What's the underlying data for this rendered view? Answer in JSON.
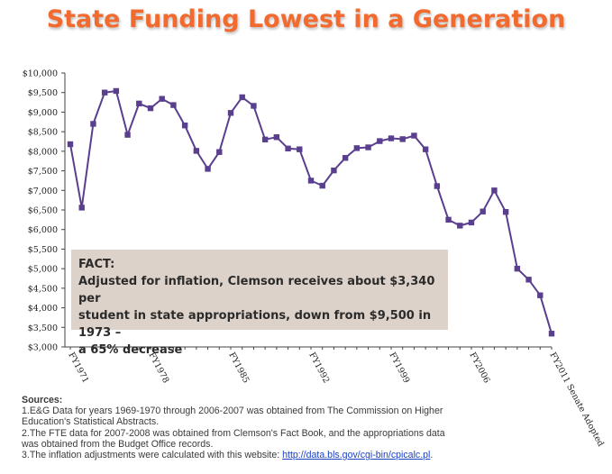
{
  "chart_data": {
    "type": "line",
    "title": "State Funding Lowest in a Generation",
    "xlabel": "",
    "ylabel": "",
    "ylim": [
      3000,
      10000
    ],
    "yticks": [
      "$3,000",
      "$3,500",
      "$4,000",
      "$4,500",
      "$5,000",
      "$5,500",
      "$6,000",
      "$6,500",
      "$7,000",
      "$7,500",
      "$8,000",
      "$8,500",
      "$9,000",
      "$9,500",
      "$10,000"
    ],
    "ytick_values": [
      3000,
      3500,
      4000,
      4500,
      5000,
      5500,
      6000,
      6500,
      7000,
      7500,
      8000,
      8500,
      9000,
      9500,
      10000
    ],
    "xtick_labels": [
      {
        "label": "FY1971",
        "index": 0
      },
      {
        "label": "FY1978",
        "index": 7
      },
      {
        "label": "FY1985",
        "index": 14
      },
      {
        "label": "FY1992",
        "index": 21
      },
      {
        "label": "FY1999",
        "index": 28
      },
      {
        "label": "FY2006",
        "index": 35
      },
      {
        "label": "FY2011 Senate Adopted",
        "index": 42
      }
    ],
    "series": [
      {
        "name": "",
        "color": "#5a3f8f",
        "values": [
          8180,
          6560,
          8700,
          9500,
          9540,
          8420,
          9220,
          9100,
          9340,
          9180,
          8660,
          8010,
          7550,
          7980,
          8980,
          9380,
          9160,
          8300,
          8360,
          8070,
          8050,
          7250,
          7120,
          7510,
          7830,
          8080,
          8100,
          8260,
          8330,
          8310,
          8400,
          8050,
          7110,
          6250,
          6100,
          6180,
          6460,
          7000,
          6450,
          5000,
          4720,
          4320,
          3340
        ]
      }
    ],
    "grid": false,
    "legend": "none"
  },
  "fact": {
    "heading": "FACT:",
    "line1": "Adjusted for inflation, Clemson receives about $3,340 per",
    "line2": "student in state appropriations, down from $9,500 in 1973 –",
    "line3": "a 65% decrease"
  },
  "sources": {
    "title": "Sources:",
    "line1": "1.E&G Data for years 1969-1970 through 2006-2007 was obtained from The Commission on Higher",
    "line2": "Education's Statistical Abstracts.",
    "line3": "2.The FTE data for 2007-2008 was obtained from Clemson's Fact Book, and the appropriations data",
    "line4": "was obtained from the Budget Office records.",
    "line5_prefix": "3.The inflation adjustments were calculated with this website:  ",
    "link": "http://data.bls.gov/cgi-bin/cpicalc.pl",
    "line5_suffix": "."
  }
}
